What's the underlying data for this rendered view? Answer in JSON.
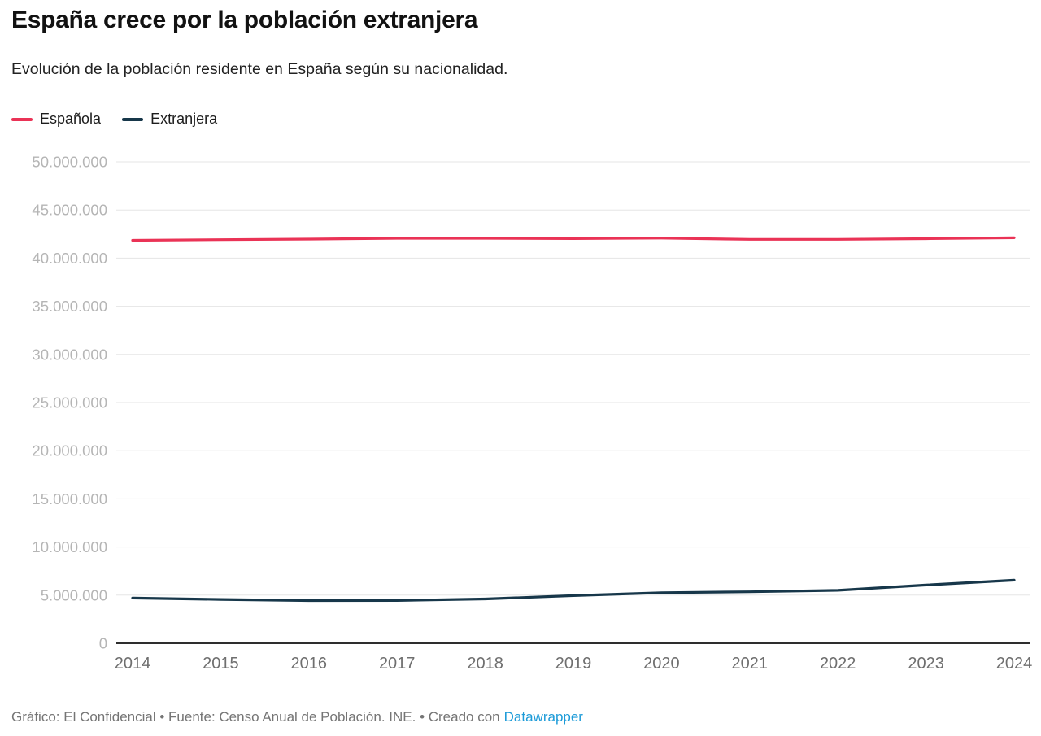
{
  "chart_data": {
    "type": "line",
    "title": "España crece por la población extranjera",
    "subtitle": "Evolución de la población residente en España según su nacionalidad.",
    "categories": [
      "2014",
      "2015",
      "2016",
      "2017",
      "2018",
      "2019",
      "2020",
      "2021",
      "2022",
      "2023",
      "2024"
    ],
    "series": [
      {
        "name": "Española",
        "color": "#ea3356",
        "values": [
          41850000,
          41920000,
          41980000,
          42060000,
          42060000,
          42030000,
          42080000,
          41950000,
          41950000,
          42020000,
          42110000
        ]
      },
      {
        "name": "Extranjera",
        "color": "#17374a",
        "values": [
          4700000,
          4550000,
          4430000,
          4440000,
          4600000,
          4950000,
          5250000,
          5350000,
          5500000,
          6050000,
          6550000
        ]
      }
    ],
    "ylim": [
      0,
      50000000
    ],
    "y_ticks": [
      {
        "value": 0,
        "label": "0"
      },
      {
        "value": 5000000,
        "label": "5.000.000"
      },
      {
        "value": 10000000,
        "label": "10.000.000"
      },
      {
        "value": 15000000,
        "label": "15.000.000"
      },
      {
        "value": 20000000,
        "label": "20.000.000"
      },
      {
        "value": 25000000,
        "label": "25.000.000"
      },
      {
        "value": 30000000,
        "label": "30.000.000"
      },
      {
        "value": 35000000,
        "label": "35.000.000"
      },
      {
        "value": 40000000,
        "label": "40.000.000"
      },
      {
        "value": 45000000,
        "label": "45.000.000"
      },
      {
        "value": 50000000,
        "label": "50.000.000"
      }
    ],
    "grid": "horizontal",
    "legend_position": "top"
  },
  "footer": {
    "text_before_link": "Gráfico: El Confidencial • Fuente: Censo Anual de Población. INE. • Creado con",
    "link_label": "Datawrapper"
  },
  "colors": {
    "link_blue": "#1d9bd8",
    "grid_gray": "#e5e5e5",
    "axis_dark": "#2e2e2e"
  }
}
